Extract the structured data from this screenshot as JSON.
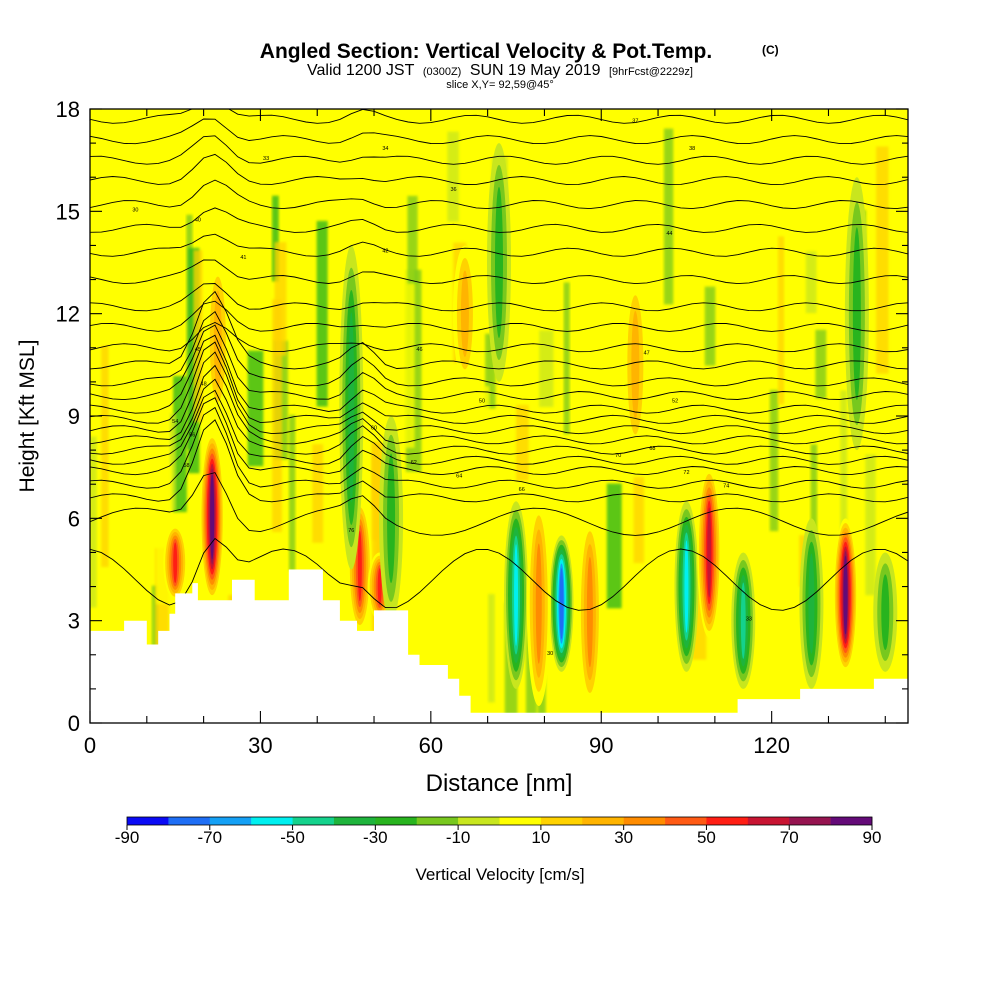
{
  "chart_data": {
    "type": "heatmap",
    "title_main": "Angled Section: Vertical Velocity & Pot.Temp.",
    "title_unit": "(C)",
    "subtitle_a": "Valid 1200 JST",
    "subtitle_b": "(0300Z)",
    "subtitle_c": "SUN 19 May 2019",
    "subtitle_d": "[9hrFcst@2229z]",
    "slice_label": "slice X,Y= 92,59@45°",
    "xlabel": "Distance [nm]",
    "ylabel": "Height [Kft MSL]",
    "xlim": [
      0,
      144
    ],
    "ylim": [
      0,
      18
    ],
    "x_ticks": [
      0,
      30,
      60,
      90,
      120
    ],
    "y_ticks": [
      0,
      3,
      6,
      9,
      12,
      15,
      18
    ],
    "colorbar_label": "Vertical Velocity [cm/s]",
    "colorbar_ticks": [
      "-90",
      "-70",
      "-50",
      "-30",
      "-10",
      "10",
      "30",
      "50",
      "70",
      "90"
    ],
    "colorbar_levels": [
      -90,
      -80,
      -70,
      -60,
      -50,
      -40,
      -30,
      -20,
      -10,
      0,
      10,
      20,
      30,
      40,
      50,
      60,
      70,
      80,
      90
    ],
    "colorbar_colors": [
      "#0a0af5",
      "#1e6ef5",
      "#14a0f5",
      "#00f0f0",
      "#14d28c",
      "#1eb43c",
      "#28b41e",
      "#78c81e",
      "#c8e61e",
      "#ffff00",
      "#ffd200",
      "#ffb400",
      "#ff8c00",
      "#ff5a14",
      "#ff1e14",
      "#c81432",
      "#961450",
      "#640a78"
    ],
    "terrain_profile": [
      [
        0,
        2.7
      ],
      [
        6,
        2.7
      ],
      [
        6,
        3.0
      ],
      [
        10,
        3.0
      ],
      [
        10,
        2.3
      ],
      [
        12,
        2.3
      ],
      [
        12,
        2.7
      ],
      [
        14,
        2.7
      ],
      [
        14,
        3.2
      ],
      [
        15,
        3.2
      ],
      [
        15,
        3.8
      ],
      [
        18,
        3.8
      ],
      [
        18,
        4.1
      ],
      [
        19,
        4.1
      ],
      [
        19,
        3.6
      ],
      [
        25,
        3.6
      ],
      [
        25,
        4.2
      ],
      [
        29,
        4.2
      ],
      [
        29,
        3.6
      ],
      [
        35,
        3.6
      ],
      [
        35,
        4.5
      ],
      [
        41,
        4.5
      ],
      [
        41,
        3.6
      ],
      [
        44,
        3.6
      ],
      [
        44,
        3.0
      ],
      [
        47,
        3.0
      ],
      [
        47,
        2.7
      ],
      [
        50,
        2.7
      ],
      [
        50,
        3.3
      ],
      [
        56,
        3.3
      ],
      [
        56,
        2.0
      ],
      [
        58,
        2.0
      ],
      [
        58,
        1.7
      ],
      [
        63,
        1.7
      ],
      [
        63,
        1.3
      ],
      [
        65,
        1.3
      ],
      [
        65,
        0.8
      ],
      [
        67,
        0.8
      ],
      [
        67,
        0.3
      ],
      [
        114,
        0.3
      ],
      [
        114,
        0.7
      ],
      [
        125,
        0.7
      ],
      [
        125,
        1.0
      ],
      [
        138,
        1.0
      ],
      [
        138,
        1.3
      ],
      [
        144,
        1.3
      ]
    ],
    "isentrope_labels": [
      "30",
      "33",
      "34",
      "36",
      "37",
      "38",
      "40",
      "41",
      "42",
      "44",
      "45",
      "46",
      "47",
      "48",
      "50",
      "52",
      "54",
      "56",
      "58",
      "60",
      "62",
      "64",
      "66",
      "68",
      "70",
      "72",
      "74",
      "76"
    ],
    "features": [
      {
        "x": 21.5,
        "peak": 90,
        "base": 3.6,
        "top": 8.5
      },
      {
        "x": 15,
        "peak": 55,
        "base": 3.6,
        "top": 5.8
      },
      {
        "x": 22.5,
        "peak": 25,
        "base": 9.0,
        "top": 13.5
      },
      {
        "x": 47.5,
        "peak": 60,
        "base": 2.7,
        "top": 6.5
      },
      {
        "x": 51,
        "peak": 55,
        "base": 3.0,
        "top": 5.0
      },
      {
        "x": 46,
        "peak": -35,
        "base": 4.5,
        "top": 14.0
      },
      {
        "x": 53,
        "peak": -30,
        "base": 3.0,
        "top": 9.0
      },
      {
        "x": 75,
        "peak": -55,
        "base": 1.0,
        "top": 6.5
      },
      {
        "x": 83,
        "peak": -80,
        "base": 1.5,
        "top": 5.5
      },
      {
        "x": 79,
        "peak": 40,
        "base": 0.5,
        "top": 6.5
      },
      {
        "x": 88,
        "peak": 35,
        "base": 0.5,
        "top": 6.0
      },
      {
        "x": 105,
        "peak": -60,
        "base": 1.5,
        "top": 6.5
      },
      {
        "x": 109,
        "peak": 70,
        "base": 2.5,
        "top": 7.5
      },
      {
        "x": 115,
        "peak": -45,
        "base": 1.0,
        "top": 5.0
      },
      {
        "x": 133,
        "peak": 90,
        "base": 1.5,
        "top": 6.0
      },
      {
        "x": 127,
        "peak": -35,
        "base": 1.0,
        "top": 6.0
      },
      {
        "x": 140,
        "peak": -25,
        "base": 1.5,
        "top": 5.0
      },
      {
        "x": 66,
        "peak": 30,
        "base": 10.0,
        "top": 14.0
      },
      {
        "x": 72,
        "peak": -30,
        "base": 10.0,
        "top": 17.0
      },
      {
        "x": 96,
        "peak": 25,
        "base": 8.0,
        "top": 13.0
      },
      {
        "x": 135,
        "peak": -25,
        "base": 8.0,
        "top": 16.0
      }
    ]
  }
}
